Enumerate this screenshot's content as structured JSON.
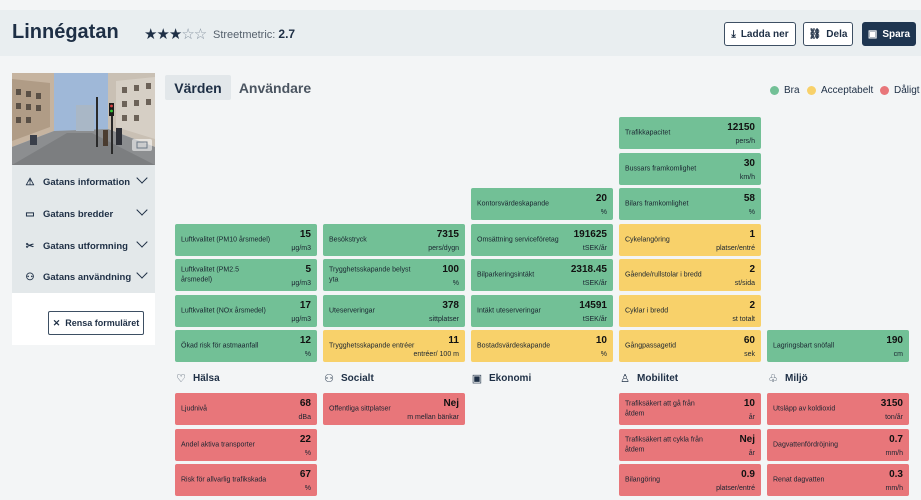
{
  "header": {
    "title": "Linnégatan",
    "stars": {
      "filled": "★★★",
      "empty": "☆☆"
    },
    "metric_label": "Streetmetric:",
    "metric_value": "2.7",
    "download_label": "Ladda ner",
    "share_label": "Dela",
    "save_label": "Spara"
  },
  "sidebar": {
    "items": [
      {
        "label": "Gatans information",
        "icon": "warning-triangle-icon"
      },
      {
        "label": "Gatans bredder",
        "icon": "ruler-icon"
      },
      {
        "label": "Gatans utformning",
        "icon": "tools-icon"
      },
      {
        "label": "Gatans användning",
        "icon": "people-icon"
      }
    ],
    "clear_label": "Rensa formuläret"
  },
  "tabs": [
    "Värden",
    "Användare"
  ],
  "legend": [
    {
      "label": "Bra",
      "color": "#72c096"
    },
    {
      "label": "Acceptabelt",
      "color": "#f8d16a"
    },
    {
      "label": "Dåligt",
      "color": "#e8767a"
    }
  ],
  "categories": [
    "Hälsa",
    "Socialt",
    "Ekonomi",
    "Mobilitet",
    "Miljö"
  ],
  "cards": {
    "halsa_top": [
      {
        "label": "Luftkvalitet (PM10 årsmedel)",
        "value": "15",
        "unit": "μg/m3",
        "status": "green"
      },
      {
        "label": "Luftkvalitet (PM2.5 årsmedel)",
        "value": "5",
        "unit": "μg/m3",
        "status": "green"
      },
      {
        "label": "Luftkvalitet (NOx årsmedel)",
        "value": "17",
        "unit": "μg/m3",
        "status": "green"
      },
      {
        "label": "Ökad risk för astmaanfall",
        "value": "12",
        "unit": "%",
        "status": "green"
      }
    ],
    "socialt_top": [
      {
        "label": "Besökstryck",
        "value": "7315",
        "unit": "pers/dygn",
        "status": "green"
      },
      {
        "label": "Trygghetsskapande belyst yta",
        "value": "100",
        "unit": "%",
        "status": "green"
      },
      {
        "label": "Uteserveringar",
        "value": "378",
        "unit": "sittplatser",
        "status": "green"
      },
      {
        "label": "Trygghetsskapande entréer",
        "value": "11",
        "unit": "entréer/ 100 m",
        "status": "yellow"
      }
    ],
    "ekonomi_top": [
      {
        "label": "Kontorsvärdeskapande",
        "value": "20",
        "unit": "%",
        "status": "green"
      },
      {
        "label": "Omsättning serviceföretag",
        "value": "191625",
        "unit": "tSEK/år",
        "status": "green"
      },
      {
        "label": "Bilparkeringsintäkt",
        "value": "2318.45",
        "unit": "tSEK/år",
        "status": "green"
      },
      {
        "label": "Intäkt uteserveringar",
        "value": "14591",
        "unit": "tSEK/år",
        "status": "green"
      },
      {
        "label": "Bostadsvärdeskapande",
        "value": "10",
        "unit": "%",
        "status": "yellow"
      }
    ],
    "mobilitet_top": [
      {
        "label": "Trafikkapacitet",
        "value": "12150",
        "unit": "pers/h",
        "status": "green"
      },
      {
        "label": "Bussars framkomlighet",
        "value": "30",
        "unit": "km/h",
        "status": "green"
      },
      {
        "label": "Bilars framkomlighet",
        "value": "58",
        "unit": "%",
        "status": "green"
      },
      {
        "label": "Cykelangöring",
        "value": "1",
        "unit": "platser/entré",
        "status": "yellow"
      },
      {
        "label": "Gående/rullstolar i bredd",
        "value": "2",
        "unit": "st/sida",
        "status": "yellow"
      },
      {
        "label": "Cyklar i bredd",
        "value": "2",
        "unit": "st totalt",
        "status": "yellow"
      },
      {
        "label": "Gångpassagetid",
        "value": "60",
        "unit": "sek",
        "status": "yellow"
      }
    ],
    "miljo_top": [
      {
        "label": "Lagringsbart snöfall",
        "value": "190",
        "unit": "cm",
        "status": "green"
      }
    ],
    "halsa_bottom": [
      {
        "label": "Ljudnivå",
        "value": "68",
        "unit": "dBa",
        "status": "red"
      },
      {
        "label": "Andel aktiva transporter",
        "value": "22",
        "unit": "%",
        "status": "red"
      },
      {
        "label": "Risk för allvarlig trafikskada",
        "value": "67",
        "unit": "%",
        "status": "red"
      }
    ],
    "socialt_bottom": [
      {
        "label": "Offentliga sittplatser",
        "value": "Nej",
        "unit": "m mellan bänkar",
        "status": "red"
      }
    ],
    "mobilitet_bottom": [
      {
        "label": "Trafiksäkert att gå från åtdem",
        "value": "10",
        "unit": "år",
        "status": "red"
      },
      {
        "label": "Trafiksäkert att cykla från åtdem",
        "value": "Nej",
        "unit": "år",
        "status": "red"
      },
      {
        "label": "Bilangöring",
        "value": "0.9",
        "unit": "platser/entré",
        "status": "red"
      }
    ],
    "miljo_bottom": [
      {
        "label": "Utsläpp av koldioxid",
        "value": "3150",
        "unit": "ton/år",
        "status": "red"
      },
      {
        "label": "Dagvattenfördröjning",
        "value": "0.7",
        "unit": "mm/h",
        "status": "red"
      },
      {
        "label": "Renat dagvatten",
        "value": "0.3",
        "unit": "mm/h",
        "status": "red"
      }
    ]
  }
}
